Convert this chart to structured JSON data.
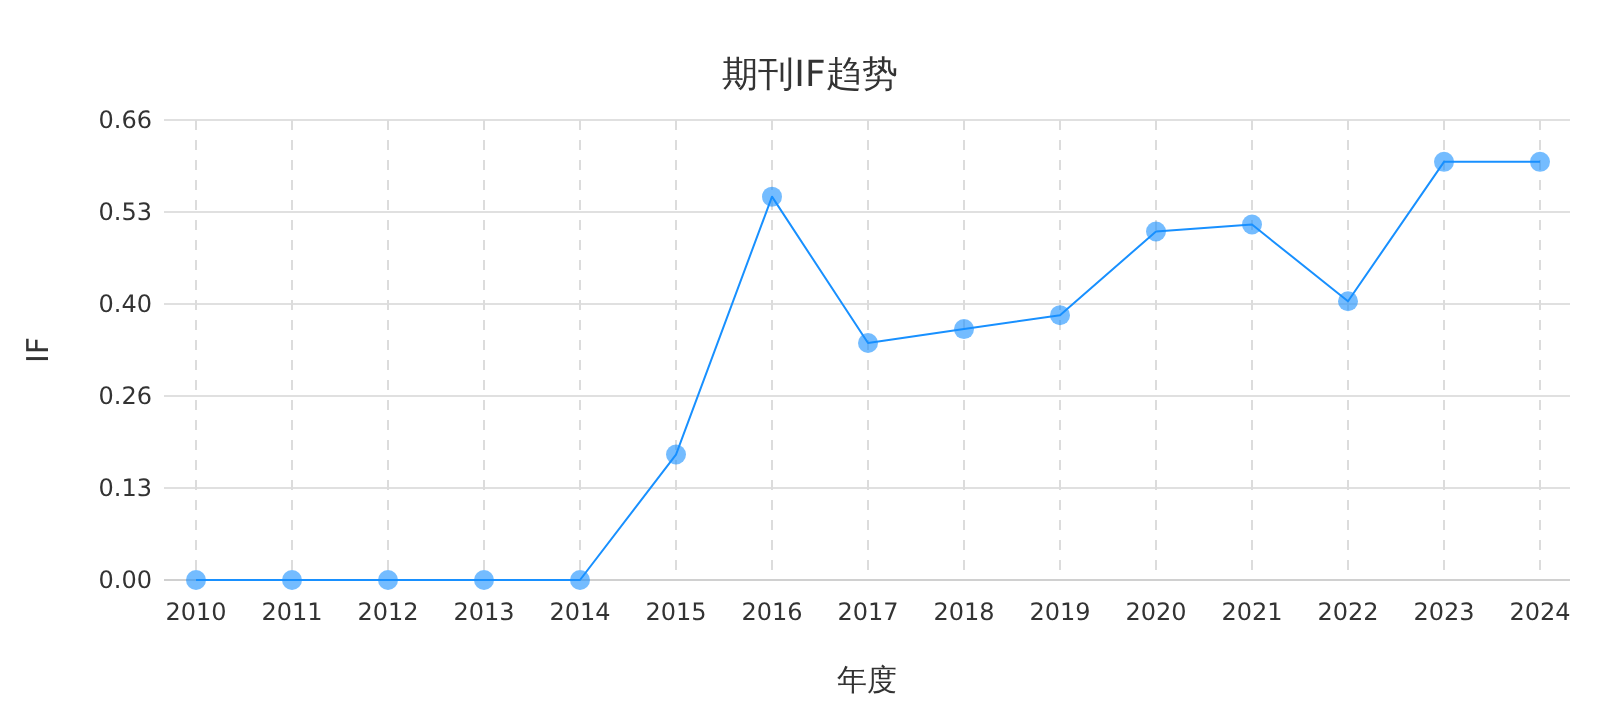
{
  "chart_data": {
    "type": "line",
    "title": "期刊IF趋势",
    "xlabel": "年度",
    "ylabel": "IF",
    "categories": [
      "2010",
      "2011",
      "2012",
      "2013",
      "2014",
      "2015",
      "2016",
      "2017",
      "2018",
      "2019",
      "2020",
      "2021",
      "2022",
      "2023",
      "2024"
    ],
    "series": [
      {
        "color": "#1890ff",
        "values": [
          0,
          0,
          0,
          0,
          0,
          0.18,
          0.55,
          0.34,
          0.36,
          0.38,
          0.5,
          0.51,
          0.4,
          0.6,
          0.6
        ]
      }
    ],
    "ylim": [
      0,
      0.66
    ],
    "yticks": [
      {
        "value": 0,
        "label": "0.00"
      },
      {
        "value": 0.132,
        "label": "0.13"
      },
      {
        "value": 0.264,
        "label": "0.26"
      },
      {
        "value": 0.396,
        "label": "0.40"
      },
      {
        "value": 0.528,
        "label": "0.53"
      },
      {
        "value": 0.66,
        "label": "0.66"
      }
    ],
    "grid": true,
    "marker": "circle",
    "line_style": "solid"
  }
}
